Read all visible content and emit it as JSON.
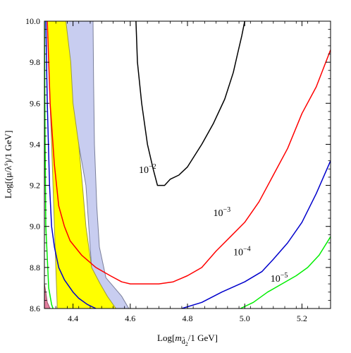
{
  "chart_data": {
    "type": "line",
    "xlabel": "Log[m_d̃2/1 GeV]",
    "xlabel_parts": {
      "prefix": "Log[",
      "symbol": "m",
      "sub": "d̃",
      "subsub": "2",
      "suffix": "/1 GeV]"
    },
    "ylabel": "Log[(μ/λ^s)/1 GeV]",
    "ylabel_parts": {
      "prefix": "Log[(μ/λ",
      "sup": "s",
      "suffix": ")/1 GeV]"
    },
    "xlim": [
      4.3,
      5.3
    ],
    "ylim": [
      8.6,
      10.0
    ],
    "xticks": [
      4.4,
      4.6,
      4.8,
      5.0,
      5.2
    ],
    "xtick_labels": [
      "4.4",
      "4.6",
      "4.8",
      "5.0",
      "5.2"
    ],
    "yticks": [
      8.6,
      8.8,
      9.0,
      9.2,
      9.4,
      9.6,
      9.8,
      10.0
    ],
    "ytick_labels": [
      "8.6",
      "8.8",
      "9.0",
      "9.2",
      "9.4",
      "9.6",
      "9.8",
      "10.0"
    ],
    "colors": {
      "yellow_fill": "#ffff00",
      "blue_fill": "#c8cdf0",
      "pink_fill": "#e47fa0",
      "black_line": "#000000",
      "red_line": "#ff0000",
      "blue_line": "#0000cc",
      "green_line": "#00ee00"
    },
    "regions": [
      {
        "id": "blue-band",
        "points": [
          [
            4.34,
            10.0
          ],
          [
            4.395,
            9.6
          ],
          [
            4.42,
            9.4
          ],
          [
            4.445,
            9.2
          ],
          [
            4.455,
            9.0
          ],
          [
            4.465,
            8.8
          ],
          [
            4.475,
            8.72
          ],
          [
            4.5,
            8.66
          ],
          [
            4.513,
            8.6
          ],
          [
            4.595,
            8.6
          ],
          [
            4.57,
            8.66
          ],
          [
            4.515,
            8.75
          ],
          [
            4.492,
            8.9
          ],
          [
            4.483,
            9.1
          ],
          [
            4.475,
            9.4
          ],
          [
            4.472,
            9.7
          ],
          [
            4.47,
            10.0
          ]
        ]
      },
      {
        "id": "yellow-band",
        "points": [
          [
            4.31,
            10.0
          ],
          [
            4.315,
            9.8
          ],
          [
            4.32,
            9.6
          ],
          [
            4.325,
            9.4
          ],
          [
            4.33,
            9.2
          ],
          [
            4.335,
            9.0
          ],
          [
            4.34,
            8.8
          ],
          [
            4.345,
            8.6
          ],
          [
            4.55,
            8.6
          ],
          [
            4.52,
            8.66
          ],
          [
            4.495,
            8.72
          ],
          [
            4.465,
            8.8
          ],
          [
            4.445,
            9.0
          ],
          [
            4.433,
            9.2
          ],
          [
            4.42,
            9.4
          ],
          [
            4.4,
            9.6
          ],
          [
            4.392,
            9.8
          ],
          [
            4.375,
            10.0
          ]
        ]
      },
      {
        "id": "pink-band",
        "points": [
          [
            4.3,
            8.72
          ],
          [
            4.305,
            8.68
          ],
          [
            4.31,
            8.63
          ],
          [
            4.32,
            8.6
          ],
          [
            4.3,
            8.6
          ]
        ]
      }
    ],
    "series": [
      {
        "id": "curve-1e-2",
        "color": "#000000",
        "points": [
          [
            4.62,
            10.0
          ],
          [
            4.625,
            9.8
          ],
          [
            4.64,
            9.6
          ],
          [
            4.66,
            9.4
          ],
          [
            4.68,
            9.28
          ],
          [
            4.695,
            9.2
          ],
          [
            4.72,
            9.2
          ],
          [
            4.74,
            9.23
          ],
          [
            4.77,
            9.25
          ],
          [
            4.8,
            9.29
          ],
          [
            4.85,
            9.4
          ],
          [
            4.89,
            9.5
          ],
          [
            4.93,
            9.62
          ],
          [
            4.96,
            9.75
          ],
          [
            4.975,
            9.84
          ],
          [
            4.99,
            9.93
          ],
          [
            5.0,
            10.0
          ]
        ]
      },
      {
        "id": "curve-1e-3",
        "color": "#ff0000",
        "points": [
          [
            4.31,
            10.0
          ],
          [
            4.32,
            9.6
          ],
          [
            4.335,
            9.3
          ],
          [
            4.35,
            9.1
          ],
          [
            4.37,
            9.0
          ],
          [
            4.39,
            8.93
          ],
          [
            4.43,
            8.86
          ],
          [
            4.48,
            8.8
          ],
          [
            4.53,
            8.76
          ],
          [
            4.57,
            8.73
          ],
          [
            4.6,
            8.72
          ],
          [
            4.7,
            8.72
          ],
          [
            4.75,
            8.73
          ],
          [
            4.8,
            8.76
          ],
          [
            4.85,
            8.8
          ],
          [
            4.9,
            8.88
          ],
          [
            4.95,
            8.95
          ],
          [
            5.0,
            9.02
          ],
          [
            5.05,
            9.12
          ],
          [
            5.1,
            9.25
          ],
          [
            5.15,
            9.38
          ],
          [
            5.2,
            9.55
          ],
          [
            5.25,
            9.68
          ],
          [
            5.3,
            9.86
          ]
        ]
      },
      {
        "id": "curve-1e-4",
        "color": "#0000cc",
        "points": [
          [
            4.305,
            10.0
          ],
          [
            4.31,
            9.6
          ],
          [
            4.318,
            9.2
          ],
          [
            4.325,
            9.0
          ],
          [
            4.335,
            8.9
          ],
          [
            4.35,
            8.8
          ],
          [
            4.37,
            8.74
          ],
          [
            4.4,
            8.68
          ],
          [
            4.42,
            8.65
          ],
          [
            4.45,
            8.62
          ],
          [
            4.48,
            8.6
          ]
        ],
        "points2": [
          [
            4.78,
            8.6
          ],
          [
            4.85,
            8.63
          ],
          [
            4.92,
            8.68
          ],
          [
            5.0,
            8.73
          ],
          [
            5.06,
            8.78
          ],
          [
            5.1,
            8.84
          ],
          [
            5.15,
            8.92
          ],
          [
            5.2,
            9.02
          ],
          [
            5.25,
            9.16
          ],
          [
            5.3,
            9.32
          ]
        ]
      },
      {
        "id": "curve-1e-5",
        "color": "#00ee00",
        "points": [
          [
            4.3,
            10.0
          ],
          [
            4.302,
            9.5
          ],
          [
            4.305,
            9.0
          ],
          [
            4.315,
            8.7
          ],
          [
            4.325,
            8.62
          ],
          [
            4.33,
            8.6
          ]
        ],
        "points2": [
          [
            4.985,
            8.6
          ],
          [
            5.03,
            8.63
          ],
          [
            5.08,
            8.68
          ],
          [
            5.13,
            8.72
          ],
          [
            5.18,
            8.76
          ],
          [
            5.22,
            8.8
          ],
          [
            5.26,
            8.86
          ],
          [
            5.3,
            8.95
          ]
        ]
      }
    ],
    "annotations": [
      {
        "id": "label-1e-2",
        "base": "10",
        "exp": "−2",
        "x": 4.63,
        "y": 9.26
      },
      {
        "id": "label-1e-3",
        "base": "10",
        "exp": "−3",
        "x": 4.89,
        "y": 9.05
      },
      {
        "id": "label-1e-4",
        "base": "10",
        "exp": "−4",
        "x": 4.96,
        "y": 8.86
      },
      {
        "id": "label-1e-5",
        "base": "10",
        "exp": "−5",
        "x": 5.09,
        "y": 8.73
      }
    ]
  }
}
